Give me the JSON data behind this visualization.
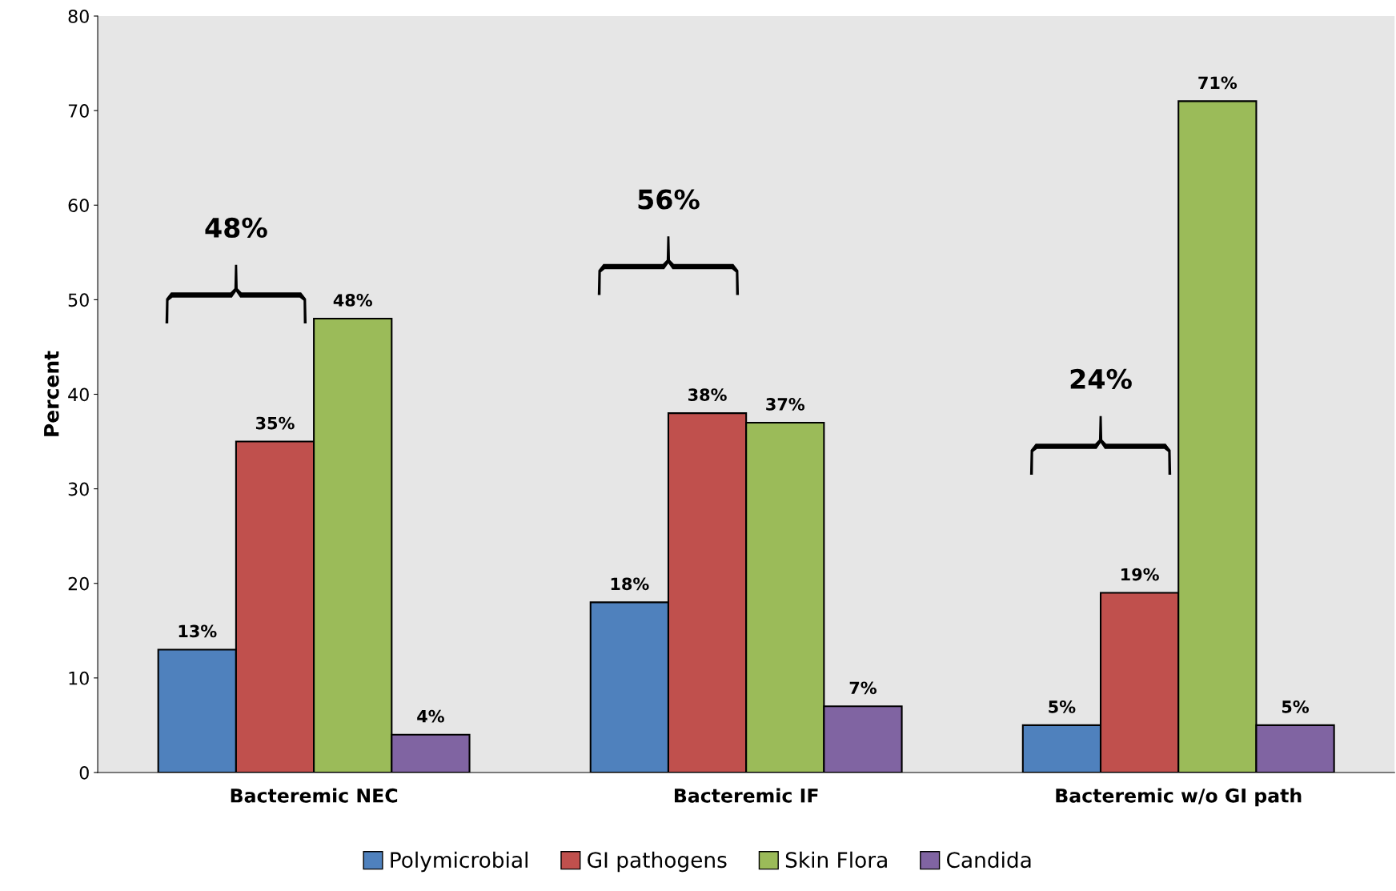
{
  "chart_data": {
    "type": "bar",
    "ylabel": "Percent",
    "categories": [
      "Bacteremic NEC",
      "Bacteremic IF",
      "Bacteremic w/o GI path"
    ],
    "series": [
      {
        "name": "Polymicrobial",
        "color": "#4f81bd",
        "values": [
          13,
          18,
          5
        ],
        "value_labels": [
          "13%",
          "18%",
          "5%"
        ]
      },
      {
        "name": "GI pathogens",
        "color": "#c0504d",
        "values": [
          35,
          38,
          19
        ],
        "value_labels": [
          "35%",
          "38%",
          "19%"
        ]
      },
      {
        "name": "Skin Flora",
        "color": "#9bbb59",
        "values": [
          48,
          37,
          71
        ],
        "value_labels": [
          "48%",
          "37%",
          "71%"
        ]
      },
      {
        "name": "Candida",
        "color": "#8064a2",
        "values": [
          4,
          7,
          5
        ],
        "value_labels": [
          "4%",
          "7%",
          "5%"
        ]
      }
    ],
    "annotations": [
      "48%",
      "56%",
      "24%"
    ],
    "ylim": [
      0,
      80
    ],
    "yticks": [
      0,
      10,
      20,
      30,
      40,
      50,
      60,
      70,
      80
    ],
    "grid": false,
    "legend": "bottom"
  }
}
